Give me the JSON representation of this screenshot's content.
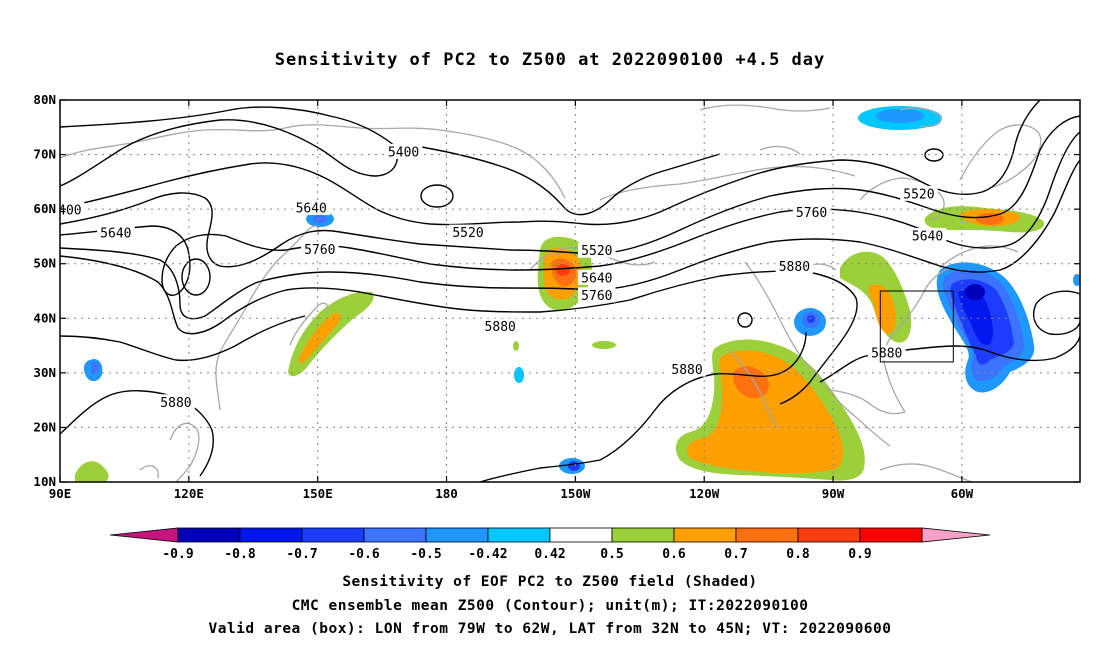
{
  "title": "Sensitivity of PC2 to Z500 at 2022090100 +4.5 day",
  "map": {
    "lat_ticks": [
      "80N",
      "70N",
      "60N",
      "50N",
      "40N",
      "30N",
      "20N",
      "10N"
    ],
    "lon_ticks": [
      "90E",
      "120E",
      "150E",
      "180",
      "150W",
      "120W",
      "90W",
      "60W"
    ],
    "contour_labels": [
      {
        "text": "5400",
        "lon": 170,
        "lat": 70.5
      },
      {
        "text": "400",
        "lon": 92.3,
        "lat": 59.8
      },
      {
        "text": "5640",
        "lon": 103,
        "lat": 55.6
      },
      {
        "text": "5640",
        "lon": 148.5,
        "lat": 60.2
      },
      {
        "text": "5760",
        "lon": 150.5,
        "lat": 52.6
      },
      {
        "text": "5520",
        "lon": 185,
        "lat": 55.7
      },
      {
        "text": "5520",
        "lon": 215,
        "lat": 52.4
      },
      {
        "text": "5640",
        "lon": 215,
        "lat": 47.4
      },
      {
        "text": "5760",
        "lon": 215,
        "lat": 44.2
      },
      {
        "text": "5880",
        "lon": 192.5,
        "lat": 38.5
      },
      {
        "text": "5760",
        "lon": 265,
        "lat": 59.4
      },
      {
        "text": "5880",
        "lon": 261,
        "lat": 49.5
      },
      {
        "text": "5880",
        "lon": 282.5,
        "lat": 33.6
      },
      {
        "text": "5880",
        "lon": 236,
        "lat": 30.6
      },
      {
        "text": "5880",
        "lon": 117,
        "lat": 24.6
      },
      {
        "text": "5520",
        "lon": 290,
        "lat": 62.8
      },
      {
        "text": "5640",
        "lon": 292,
        "lat": 55.1
      }
    ],
    "valid_box": {
      "lon_from": -79,
      "lon_to": -62,
      "lat_from": 32,
      "lat_to": 45
    }
  },
  "colorbar": {
    "labels": [
      "-0.9",
      "-0.8",
      "-0.7",
      "-0.6",
      "-0.5",
      "-0.42",
      "0.42",
      "0.5",
      "0.6",
      "0.7",
      "0.8",
      "0.9"
    ],
    "colors": [
      "#0000b8",
      "#0018ee",
      "#1c3cff",
      "#3c73ff",
      "#1e97ff",
      "#00c7ff",
      "#ffffff",
      "#9bd03a",
      "#ffa000",
      "#ff7010",
      "#ff3c10",
      "#ff0000"
    ],
    "low_end_color": "#c8137f",
    "high_end_color": "#f8a0c8"
  },
  "captions": [
    "Sensitivity of EOF PC2 to Z500 field (Shaded)",
    "CMC ensemble mean Z500 (Contour); unit(m); IT:2022090100",
    "Valid area (box): LON from 79W to 62W, LAT from 32N to 45N; VT: 2022090600"
  ]
}
